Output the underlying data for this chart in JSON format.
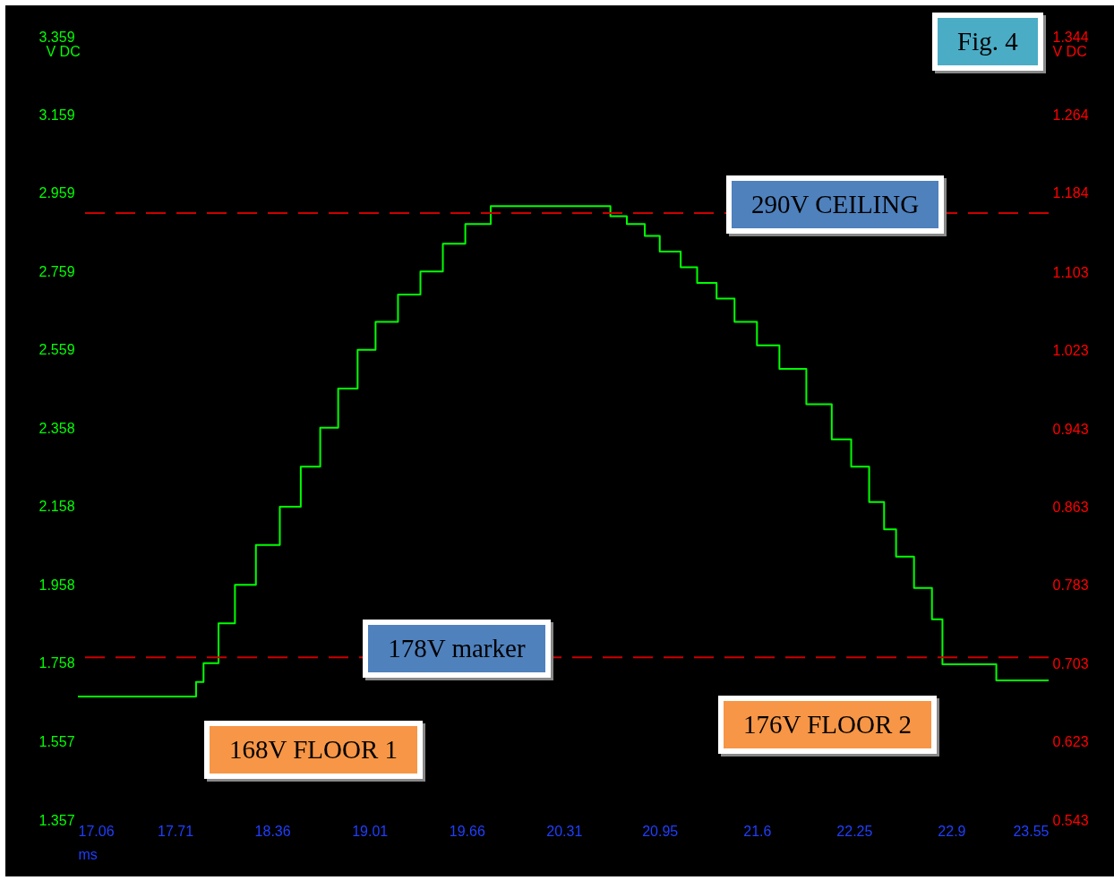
{
  "chart_data": {
    "type": "step",
    "xlabel": "ms",
    "ylabel": "V DC",
    "y2label": "V DC",
    "x": [
      17.06,
      17.77,
      17.85,
      17.9,
      18.0,
      18.11,
      18.25,
      18.41,
      18.55,
      18.68,
      18.8,
      18.93,
      19.05,
      19.2,
      19.35,
      19.5,
      19.65,
      19.82,
      20.5,
      20.62,
      20.73,
      20.85,
      20.95,
      21.09,
      21.2,
      21.33,
      21.45,
      21.6,
      21.75,
      21.93,
      22.1,
      22.23,
      22.35,
      22.45,
      22.53,
      22.65,
      22.77,
      22.84,
      23.15,
      23.2,
      23.55
    ],
    "series": [
      {
        "color": "#00ff00",
        "values": [
          1.673,
          1.673,
          1.71,
          1.758,
          1.86,
          1.958,
          2.06,
          2.158,
          2.26,
          2.36,
          2.46,
          2.559,
          2.63,
          2.7,
          2.759,
          2.83,
          2.88,
          2.926,
          2.926,
          2.9,
          2.88,
          2.85,
          2.81,
          2.77,
          2.73,
          2.69,
          2.63,
          2.57,
          2.51,
          2.42,
          2.33,
          2.26,
          2.17,
          2.1,
          2.03,
          1.95,
          1.87,
          1.755,
          1.755,
          1.714,
          1.714
        ]
      }
    ],
    "xlim": [
      17.06,
      23.55
    ],
    "xticks": [
      17.06,
      17.71,
      18.36,
      19.01,
      19.66,
      20.31,
      20.95,
      21.6,
      22.25,
      22.9,
      23.55
    ],
    "ylim": [
      1.357,
      3.359
    ],
    "yticks": [
      1.357,
      1.557,
      1.758,
      1.958,
      2.158,
      2.358,
      2.559,
      2.759,
      2.959,
      3.159,
      3.359
    ],
    "y2lim": [
      0.543,
      1.344
    ],
    "y2ticks": [
      0.543,
      0.623,
      0.703,
      0.783,
      0.863,
      0.943,
      1.023,
      1.103,
      1.184,
      1.264,
      1.344
    ],
    "ref_lines": [
      {
        "axis": "y",
        "value": 2.908,
        "label": "290V CEILING",
        "color": "#cc0000",
        "line_style": "dashed"
      },
      {
        "axis": "y",
        "value": 1.773,
        "label": "178V marker",
        "color": "#cc0000",
        "line_style": "dashed"
      }
    ],
    "annotations": [
      "Fig. 4",
      "168V FLOOR 1",
      "176V FLOOR 2"
    ],
    "marker": "none",
    "line_style": "solid",
    "grid": false
  }
}
